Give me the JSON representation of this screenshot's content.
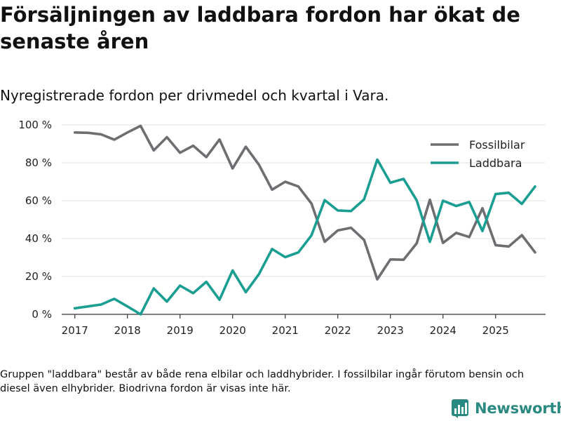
{
  "title": "Försäljningen av laddbara fordon har ökat de senaste åren",
  "subtitle": "Nyregistrerade fordon per drivmedel och kvartal i Vara.",
  "footnote": "Gruppen \"laddbara\" består av både rena elbilar och laddhybrider. I fossilbilar ingår förutom bensin och diesel även elhybrider. Biodrivna fordon är visas inte här.",
  "brand": {
    "name": "Newsworthy",
    "icon": "newsworthy-logo-icon"
  },
  "colors": {
    "fossil": "#6e6d72",
    "laddbara": "#1a9e92",
    "grid": "#e3e3e3",
    "axis": "#333333"
  },
  "chart_data": {
    "type": "line",
    "title": "Nyregistrerade fordon per drivmedel och kvartal i Vara.",
    "xlabel": "",
    "ylabel": "",
    "x": [
      2017.0,
      2017.25,
      2017.5,
      2017.75,
      2018.0,
      2018.25,
      2018.5,
      2018.75,
      2019.0,
      2019.25,
      2019.5,
      2019.75,
      2020.0,
      2020.25,
      2020.5,
      2020.75,
      2021.0,
      2021.25,
      2021.5,
      2021.75,
      2022.0,
      2022.25,
      2022.5,
      2022.75,
      2023.0,
      2023.25,
      2023.5,
      2023.75,
      2024.0,
      2024.25,
      2024.5,
      2024.75,
      2025.0,
      2025.25,
      2025.5,
      2025.75
    ],
    "xlim": [
      2016.75,
      2025.95
    ],
    "ylim": [
      0,
      100
    ],
    "xticks": [
      2017,
      2018,
      2019,
      2020,
      2021,
      2022,
      2023,
      2024,
      2025
    ],
    "xtick_labels": [
      "2017",
      "2018",
      "2019",
      "2020",
      "2021",
      "2022",
      "2023",
      "2024",
      "2025"
    ],
    "yticks": [
      0,
      20,
      40,
      60,
      80,
      100
    ],
    "ytick_labels": [
      "0 %",
      "20 %",
      "40 %",
      "60 %",
      "80 %",
      "100 %"
    ],
    "series": [
      {
        "name": "Fossilbilar",
        "color": "#6e6d72",
        "values": [
          96,
          95.8,
          95,
          92.2,
          96,
          99.5,
          86.5,
          93.5,
          85.3,
          89,
          83,
          92.3,
          77,
          88.5,
          79,
          65.8,
          70,
          67.5,
          58.5,
          38.3,
          44.3,
          45.7,
          39.3,
          18.5,
          29,
          28.8,
          37.5,
          60.5,
          37.7,
          43,
          40.8,
          56,
          36.5,
          35.8,
          41.8,
          32.7
        ]
      },
      {
        "name": "Laddbara",
        "color": "#1a9e92",
        "values": [
          3.2,
          4.2,
          5.2,
          8.2,
          4.2,
          0,
          13.7,
          6.7,
          15.2,
          11.2,
          17.2,
          7.7,
          23.2,
          11.7,
          21.2,
          34.5,
          30.2,
          32.7,
          41.7,
          60.3,
          54.8,
          54.5,
          60.7,
          81.7,
          69.5,
          71.5,
          60.2,
          38.3,
          60,
          57.2,
          59.3,
          44,
          63.5,
          64.2,
          58.3,
          67.5
        ]
      }
    ],
    "legend": {
      "position": "top-right",
      "entries": [
        "Fossilbilar",
        "Laddbara"
      ]
    }
  }
}
